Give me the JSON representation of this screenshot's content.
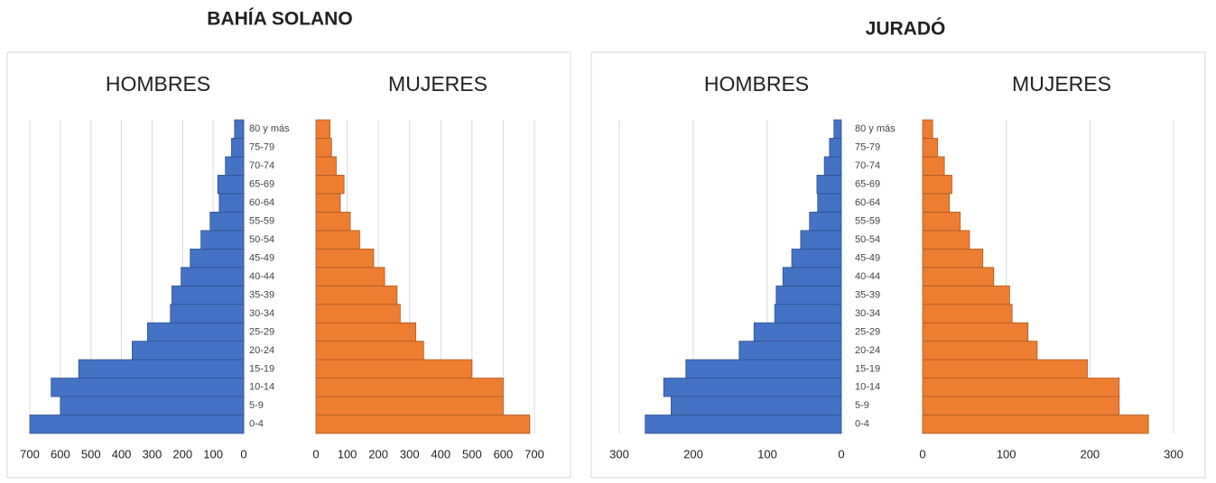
{
  "chart_data": [
    {
      "type": "bar",
      "title": "BAHÍA SOLANO",
      "categories": [
        "0-4",
        "5-9",
        "10-14",
        "15-19",
        "20-24",
        "25-29",
        "30-34",
        "35-39",
        "40-44",
        "45-49",
        "50-54",
        "55-59",
        "60-64",
        "65-69",
        "70-74",
        "75-79",
        "80 y más"
      ],
      "series": [
        {
          "name": "HOMBRES",
          "color": "#4472c4",
          "values": [
            700,
            600,
            630,
            540,
            365,
            315,
            240,
            235,
            205,
            175,
            140,
            110,
            80,
            85,
            60,
            40,
            30
          ]
        },
        {
          "name": "MUJERES",
          "color": "#ed7d31",
          "values": [
            685,
            600,
            600,
            500,
            345,
            320,
            270,
            260,
            220,
            185,
            140,
            110,
            78,
            90,
            65,
            50,
            45
          ]
        }
      ],
      "xlim": [
        0,
        700
      ],
      "xticks": [
        0,
        100,
        200,
        300,
        400,
        500,
        600,
        700
      ],
      "grid": true
    },
    {
      "type": "bar",
      "title": "JURADÓ",
      "categories": [
        "0-4",
        "5-9",
        "10-14",
        "15-19",
        "20-24",
        "25-29",
        "30-34",
        "35-39",
        "40-44",
        "45-49",
        "50-54",
        "55-59",
        "60-64",
        "65-69",
        "70-74",
        "75-79",
        "80 y más"
      ],
      "series": [
        {
          "name": "HOMBRES",
          "color": "#4472c4",
          "values": [
            265,
            230,
            240,
            210,
            138,
            118,
            90,
            88,
            79,
            67,
            55,
            43,
            32,
            33,
            23,
            16,
            10
          ]
        },
        {
          "name": "MUJERES",
          "color": "#ed7d31",
          "values": [
            270,
            235,
            235,
            197,
            137,
            126,
            107,
            104,
            85,
            72,
            56,
            45,
            32,
            35,
            26,
            18,
            12
          ]
        }
      ],
      "xlim": [
        0,
        300
      ],
      "xticks": [
        0,
        100,
        200,
        300
      ],
      "grid": true
    }
  ]
}
